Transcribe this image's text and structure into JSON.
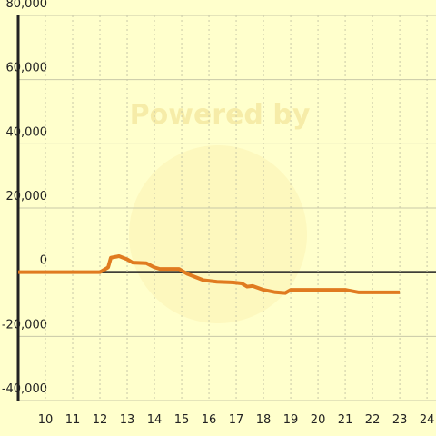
{
  "chart_data": {
    "type": "line",
    "watermark": "Powered by",
    "x": [
      9,
      12,
      12.3,
      12.4,
      12.7,
      13,
      13.2,
      13.7,
      14,
      14.2,
      14.9,
      15.2,
      15.5,
      15.8,
      16.3,
      16.9,
      17.2,
      17.4,
      17.6,
      18,
      18.4,
      18.8,
      19,
      21,
      21.5,
      23
    ],
    "series": [
      {
        "color": "#e07b20",
        "values": [
          0,
          0,
          1500,
          4500,
          5000,
          4000,
          3000,
          2800,
          1500,
          1000,
          1000,
          -500,
          -1500,
          -2500,
          -3000,
          -3200,
          -3500,
          -4500,
          -4300,
          -5500,
          -6200,
          -6500,
          -5500,
          -5500,
          -6300,
          -6300
        ]
      }
    ],
    "xlim": [
      9,
      24.33
    ],
    "xticks": [
      10,
      11,
      12,
      13,
      14,
      15,
      16,
      17,
      18,
      19,
      20,
      21,
      22,
      23,
      24
    ],
    "ylim": [
      -40000,
      80000
    ],
    "yticks": [
      {
        "value": -40000,
        "label": "-40,000"
      },
      {
        "value": -20000,
        "label": "-20,000"
      },
      0,
      {
        "value": 20000,
        "label": "20,000"
      },
      {
        "value": 40000,
        "label": "40,000"
      },
      {
        "value": 60000,
        "label": "60,000"
      },
      {
        "value": 80000,
        "label": "80,000"
      }
    ],
    "grid": true
  }
}
